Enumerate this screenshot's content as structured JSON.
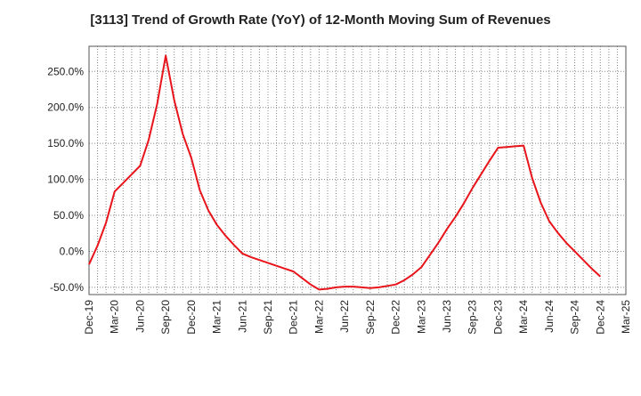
{
  "chart_data": {
    "type": "line",
    "title": "[3113]  Trend of Growth Rate (YoY) of 12-Month Moving Sum of Revenues",
    "xlabel": "",
    "ylabel": "",
    "ylim": [
      -60,
      285
    ],
    "yticks": [
      -50,
      0,
      50,
      100,
      150,
      200,
      250
    ],
    "ytick_labels": [
      "-50.0%",
      "0.0%",
      "50.0%",
      "100.0%",
      "150.0%",
      "200.0%",
      "250.0%"
    ],
    "xtick_labels": [
      "Dec-19",
      "Mar-20",
      "Jun-20",
      "Sep-20",
      "Dec-20",
      "Mar-21",
      "Jun-21",
      "Sep-21",
      "Dec-21",
      "Mar-22",
      "Jun-22",
      "Sep-22",
      "Dec-22",
      "Mar-23",
      "Jun-23",
      "Sep-23",
      "Dec-23",
      "Mar-24",
      "Jun-24",
      "Sep-24",
      "Dec-24",
      "Mar-25"
    ],
    "grid": true,
    "series": [
      {
        "color": "#e8141b",
        "x": [
          "Dec-19",
          "Jan-20",
          "Feb-20",
          "Mar-20",
          "Apr-20",
          "May-20",
          "Jun-20",
          "Jul-20",
          "Aug-20",
          "Sep-20",
          "Oct-20",
          "Nov-20",
          "Dec-20",
          "Jan-21",
          "Feb-21",
          "Mar-21",
          "Apr-21",
          "May-21",
          "Jun-21",
          "Jul-21",
          "Aug-21",
          "Sep-21",
          "Oct-21",
          "Nov-21",
          "Dec-21",
          "Jan-22",
          "Feb-22",
          "Mar-22",
          "Apr-22",
          "May-22",
          "Jun-22",
          "Jul-22",
          "Aug-22",
          "Sep-22",
          "Oct-22",
          "Nov-22",
          "Dec-22",
          "Jan-23",
          "Feb-23",
          "Mar-23",
          "Apr-23",
          "May-23",
          "Jun-23",
          "Jul-23",
          "Aug-23",
          "Sep-23",
          "Oct-23",
          "Nov-23",
          "Dec-23",
          "Jan-24",
          "Feb-24",
          "Mar-24",
          "Apr-24",
          "May-24",
          "Jun-24",
          "Jul-24",
          "Aug-24",
          "Sep-24",
          "Oct-24",
          "Nov-24",
          "Dec-24"
        ],
        "values": [
          -18,
          8,
          40,
          83,
          95,
          107,
          119,
          155,
          205,
          272,
          210,
          163,
          130,
          85,
          57,
          37,
          22,
          9,
          -3,
          -8,
          -12,
          -16,
          -20,
          -24,
          -28,
          -37,
          -46,
          -53,
          -52,
          -50,
          -49,
          -49,
          -50,
          -51,
          -50,
          -48,
          -46,
          -40,
          -32,
          -22,
          -5,
          12,
          31,
          48,
          67,
          88,
          107,
          126,
          144,
          145,
          146,
          147,
          102,
          68,
          42,
          26,
          12,
          0,
          -12,
          -24,
          -35
        ]
      }
    ]
  }
}
